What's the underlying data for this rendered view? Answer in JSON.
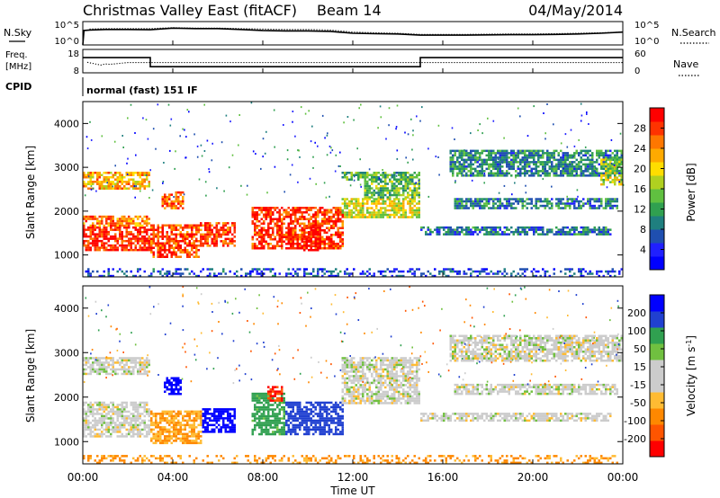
{
  "header": {
    "radar_name": "Christmas Valley East (fitACF)",
    "beam": "Beam 14",
    "date": "04/May/2014"
  },
  "time_axis": {
    "label": "Time UT",
    "ticks": [
      "00:00",
      "04:00",
      "08:00",
      "12:00",
      "16:00",
      "20:00",
      "00:00"
    ],
    "start_hour": 0,
    "end_hour": 24
  },
  "chart_data": [
    {
      "type": "line",
      "id": "nsky-nsearch",
      "left_label": "N.Sky",
      "right_label": "N.Search",
      "left_ticks": [
        "10^5",
        "10^0"
      ],
      "right_ticks": [
        "10^5",
        "10^0"
      ],
      "x_unit": "hour UT",
      "series": [
        {
          "style": "solid",
          "x": [
            0,
            0.05,
            0.3,
            1.0,
            2.0,
            3.0,
            4.0,
            5.0,
            6.0,
            7.0,
            8.0,
            9.0,
            10.0,
            11.0,
            12.0,
            13.0,
            14.0,
            15.0,
            16.0,
            17.0,
            18.0,
            19.0,
            20.0,
            21.0,
            22.0,
            23.0,
            24.0
          ],
          "y": [
            0.0,
            0.62,
            0.64,
            0.66,
            0.66,
            0.65,
            0.72,
            0.7,
            0.7,
            0.66,
            0.62,
            0.6,
            0.6,
            0.58,
            0.5,
            0.48,
            0.47,
            0.42,
            0.42,
            0.42,
            0.43,
            0.44,
            0.44,
            0.45,
            0.47,
            0.5,
            0.55
          ]
        },
        {
          "style": "dotted",
          "x": [
            0.3,
            1.0,
            2.0,
            3.0,
            4.0,
            5.0,
            6.0,
            7.0,
            8.0,
            9.0,
            10.0,
            11.0,
            12.0,
            13.0,
            14.0,
            15.0,
            16.0,
            17.0,
            18.0,
            19.0,
            20.0,
            21.0,
            22.0,
            23.0,
            24.0
          ],
          "y": [
            0.68,
            0.7,
            0.7,
            0.7,
            0.74,
            0.72,
            0.72,
            0.7,
            0.68,
            0.66,
            0.66,
            0.64,
            0.55,
            0.52,
            0.5,
            0.45,
            0.45,
            0.45,
            0.46,
            0.47,
            0.47,
            0.48,
            0.5,
            0.52,
            0.55
          ]
        }
      ]
    },
    {
      "type": "line",
      "id": "freq-nave",
      "left_label": "Freq. [MHz]",
      "right_label": "Nave",
      "left_ticks": [
        "18",
        "8"
      ],
      "right_ticks": [
        "60",
        "0"
      ],
      "x_unit": "hour UT",
      "series": [
        {
          "name": "Freq.",
          "style": "solid",
          "x": [
            0,
            3.0,
            3.0,
            15.0,
            15.0,
            24.0
          ],
          "y": [
            14.5,
            14.5,
            10.6,
            10.6,
            14.5,
            14.5
          ]
        },
        {
          "name": "Nave",
          "style": "dotted",
          "x": [
            0.2,
            0.8,
            1.0,
            1.2,
            2.0,
            3.0,
            4.0,
            8.0,
            12.0,
            15.0,
            16.0,
            20.0,
            24.0
          ],
          "y": [
            12.5,
            11.3,
            11.8,
            11.6,
            12.4,
            12.4,
            12.4,
            12.4,
            12.4,
            12.4,
            12.4,
            12.4,
            12.4
          ]
        }
      ]
    },
    {
      "type": "heatmap",
      "id": "power",
      "cpid_label": "CPID",
      "cpid_text": "normal (fast) 151 IF",
      "ylabel": "Slant Range [km]",
      "y_ticks": [
        "1000",
        "2000",
        "3000",
        "4000"
      ],
      "ylim": [
        500,
        4500
      ],
      "xlim": [
        0,
        24
      ],
      "colorbar_label": "Power [dB]",
      "colorbar_ticks": [
        "4",
        "8",
        "12",
        "16",
        "20",
        "24",
        "28"
      ],
      "colorbar_colors": [
        "#0000ff",
        "#2020ff",
        "#1f4fb0",
        "#1f7f7f",
        "#30a050",
        "#60c040",
        "#b0d020",
        "#ffdd00",
        "#ffaa00",
        "#ff7700",
        "#ff3300",
        "#ff0000"
      ],
      "bands": [
        {
          "x": [
            0.0,
            3.0
          ],
          "r": [
            1100,
            1650
          ],
          "intensity": 0.96
        },
        {
          "x": [
            0.0,
            3.0
          ],
          "r": [
            1650,
            1900
          ],
          "intensity": 0.8
        },
        {
          "x": [
            0.0,
            3.0
          ],
          "r": [
            2500,
            2900
          ],
          "intensity": 0.72
        },
        {
          "x": [
            3.0,
            5.2
          ],
          "r": [
            950,
            1700
          ],
          "intensity": 0.9
        },
        {
          "x": [
            3.5,
            4.5
          ],
          "r": [
            2050,
            2450
          ],
          "intensity": 0.85
        },
        {
          "x": [
            5.2,
            6.8
          ],
          "r": [
            1200,
            1750
          ],
          "intensity": 0.9
        },
        {
          "x": [
            7.5,
            11.6
          ],
          "r": [
            1150,
            2100
          ],
          "intensity": 0.92
        },
        {
          "x": [
            9.8,
            10.6
          ],
          "r": [
            1100,
            1700
          ],
          "intensity": 0.99
        },
        {
          "x": [
            11.5,
            15.0
          ],
          "r": [
            1850,
            2300
          ],
          "intensity": 0.6
        },
        {
          "x": [
            12.5,
            15.0
          ],
          "r": [
            2300,
            2700
          ],
          "intensity": 0.45
        },
        {
          "x": [
            11.5,
            15.0
          ],
          "r": [
            2700,
            2900
          ],
          "intensity": 0.4
        },
        {
          "x": [
            15.0,
            23.5
          ],
          "r": [
            1450,
            1650
          ],
          "intensity": 0.25
        },
        {
          "x": [
            16.5,
            23.8
          ],
          "r": [
            2050,
            2300
          ],
          "intensity": 0.28
        },
        {
          "x": [
            16.3,
            24.0
          ],
          "r": [
            2800,
            3400
          ],
          "intensity": 0.3
        },
        {
          "x": [
            23.0,
            24.0
          ],
          "r": [
            2600,
            3200
          ],
          "intensity": 0.55
        },
        {
          "x": [
            0.0,
            24.0
          ],
          "r": [
            520,
            700
          ],
          "intensity": 0.15
        }
      ]
    },
    {
      "type": "heatmap",
      "id": "velocity",
      "ylabel": "Slant Range [km]",
      "y_ticks": [
        "1000",
        "2000",
        "3000",
        "4000"
      ],
      "ylim": [
        500,
        4500
      ],
      "xlim": [
        0,
        24
      ],
      "colorbar_label": "Velocity [m s^-1]",
      "colorbar_ticks": [
        "200",
        "100",
        "50",
        "15",
        "-15",
        "-50",
        "-100",
        "-200"
      ],
      "colorbar_colors": [
        "#0000ff",
        "#2040d0",
        "#30a050",
        "#70c040",
        "#cccccc",
        "#cccccc",
        "#ffbb33",
        "#ff8800",
        "#ff5500",
        "#ff0000"
      ],
      "bands": [
        {
          "x": [
            0.0,
            3.0
          ],
          "r": [
            1100,
            1900
          ],
          "value": 0
        },
        {
          "x": [
            0.0,
            3.0
          ],
          "r": [
            2500,
            2900
          ],
          "value": 0
        },
        {
          "x": [
            3.0,
            5.3
          ],
          "r": [
            950,
            1700
          ],
          "value": -50
        },
        {
          "x": [
            3.6,
            4.4
          ],
          "r": [
            2050,
            2450
          ],
          "value": 200
        },
        {
          "x": [
            5.3,
            6.8
          ],
          "r": [
            1200,
            1750
          ],
          "value": 200
        },
        {
          "x": [
            7.5,
            9.0
          ],
          "r": [
            1150,
            2100
          ],
          "value": 50
        },
        {
          "x": [
            8.2,
            8.9
          ],
          "r": [
            1900,
            2250
          ],
          "value": -150
        },
        {
          "x": [
            9.0,
            11.6
          ],
          "r": [
            1150,
            1900
          ],
          "value": 120
        },
        {
          "x": [
            11.5,
            15.0
          ],
          "r": [
            1850,
            2900
          ],
          "value": 0
        },
        {
          "x": [
            15.0,
            23.5
          ],
          "r": [
            1450,
            1650
          ],
          "value": 0
        },
        {
          "x": [
            16.5,
            23.8
          ],
          "r": [
            2050,
            2300
          ],
          "value": 0
        },
        {
          "x": [
            16.3,
            24.0
          ],
          "r": [
            2800,
            3400
          ],
          "value": 0
        },
        {
          "x": [
            0.0,
            24.0
          ],
          "r": [
            520,
            700
          ],
          "value": -60
        }
      ]
    }
  ]
}
